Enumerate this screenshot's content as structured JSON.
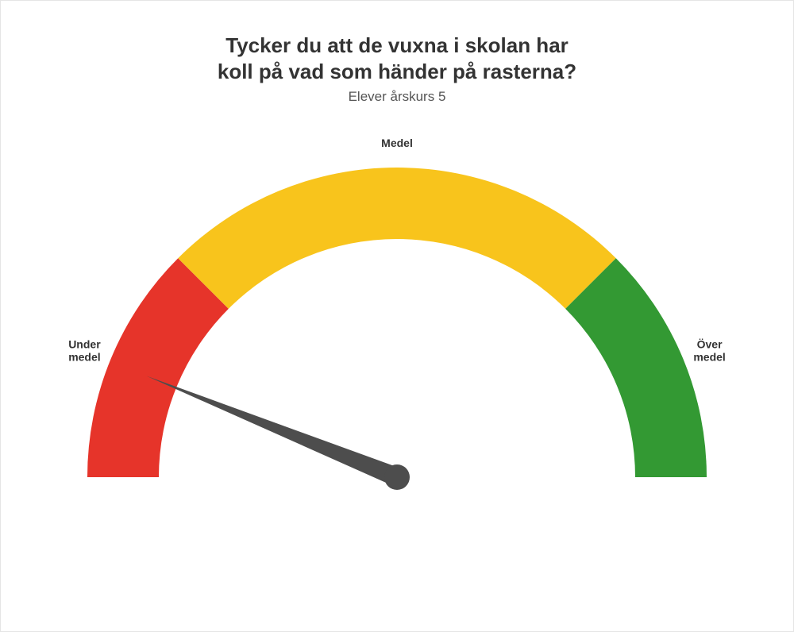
{
  "chart": {
    "type": "gauge",
    "title_line1": "Tycker du att de vuxna i skolan har",
    "title_line2": "koll på vad som händer på rasterna?",
    "title_fontsize": 26,
    "title_color": "#333333",
    "subtitle": "Elever årskurs 5",
    "subtitle_fontsize": 17,
    "subtitle_color": "#555555",
    "background_color": "#ffffff",
    "border_color": "#e5e5e5",
    "gauge": {
      "start_angle_deg": 180,
      "end_angle_deg": 0,
      "outer_radius": 390,
      "inner_radius": 300,
      "segments": [
        {
          "label_line1": "Under",
          "label_line2": "medel",
          "start_deg": 180,
          "end_deg": 135,
          "color": "#e6342a"
        },
        {
          "label_line1": "Medel",
          "label_line2": "",
          "start_deg": 135,
          "end_deg": 45,
          "color": "#f8c41c"
        },
        {
          "label_line1": "Över",
          "label_line2": "medel",
          "start_deg": 45,
          "end_deg": 0,
          "color": "#339933"
        }
      ],
      "segment_label_fontsize": 14,
      "needle": {
        "angle_deg": 158,
        "length": 340,
        "base_half_width": 12,
        "color": "#4d4d4d",
        "hub_radius": 16
      }
    }
  }
}
